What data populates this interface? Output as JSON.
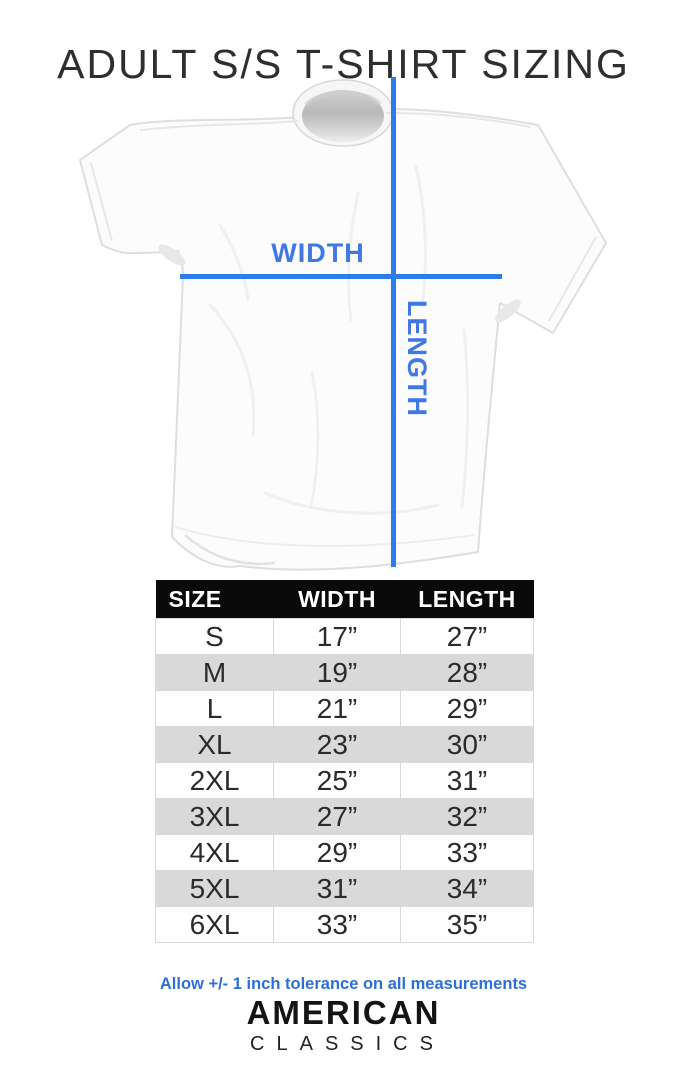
{
  "colors": {
    "accent_blue": "#2b7de9",
    "label_blue": "#3f77e3",
    "note_blue": "#2e6fd6",
    "row_alt_gray": "#d9d9d9",
    "header_bg": "#0a0a0a",
    "text_dark": "#2b2b2b"
  },
  "title": "ADULT S/S T-SHIRT SIZING",
  "diagram": {
    "width_label": "WIDTH",
    "length_label": "LENGTH"
  },
  "table": {
    "headers": [
      "SIZE",
      "WIDTH",
      "LENGTH"
    ],
    "rows": [
      {
        "size": "S",
        "width": "17”",
        "length": "27”"
      },
      {
        "size": "M",
        "width": "19”",
        "length": "28”"
      },
      {
        "size": "L",
        "width": "21”",
        "length": "29”"
      },
      {
        "size": "XL",
        "width": "23”",
        "length": "30”"
      },
      {
        "size": "2XL",
        "width": "25”",
        "length": "31”"
      },
      {
        "size": "3XL",
        "width": "27”",
        "length": "32”"
      },
      {
        "size": "4XL",
        "width": "29”",
        "length": "33”"
      },
      {
        "size": "5XL",
        "width": "31”",
        "length": "34”"
      },
      {
        "size": "6XL",
        "width": "33”",
        "length": "35”"
      }
    ]
  },
  "chart_data": {
    "type": "table",
    "columns": [
      "SIZE",
      "WIDTH",
      "LENGTH"
    ],
    "rows": [
      [
        "S",
        "17”",
        "27”"
      ],
      [
        "M",
        "19”",
        "28”"
      ],
      [
        "L",
        "21”",
        "29”"
      ],
      [
        "XL",
        "23”",
        "30”"
      ],
      [
        "2XL",
        "25”",
        "31”"
      ],
      [
        "3XL",
        "27”",
        "32”"
      ],
      [
        "4XL",
        "29”",
        "33”"
      ],
      [
        "5XL",
        "31”",
        "34”"
      ],
      [
        "6XL",
        "33”",
        "35”"
      ]
    ],
    "title": "ADULT S/S T-SHIRT SIZING"
  },
  "note": "Allow +/- 1 inch tolerance on all measurements",
  "brand": {
    "primary": "AMERICAN",
    "secondary": "CLASSICS"
  }
}
